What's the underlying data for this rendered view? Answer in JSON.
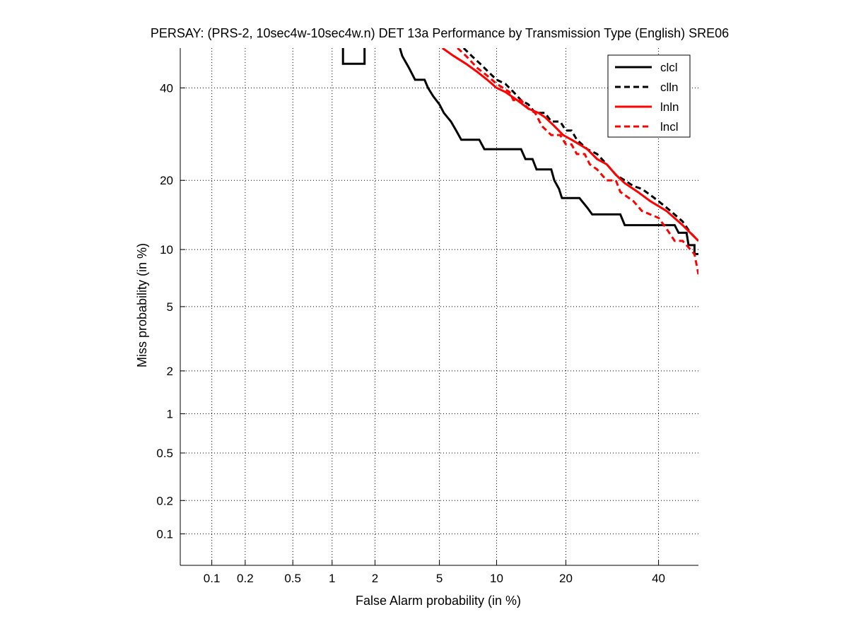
{
  "chart_data": {
    "type": "line",
    "title": "PERSAY: (PRS-2, 10sec4w-10sec4w.n) DET 13a Performance by Transmission Type (English) SRE06",
    "xlabel": "False Alarm probability (in %)",
    "ylabel": "Miss probability (in %)",
    "x_scale": "normal-deviate",
    "y_scale": "normal-deviate",
    "xlim": [
      0.05,
      50
    ],
    "ylim": [
      0.05,
      50
    ],
    "x_ticks": [
      "0.1",
      "0.2",
      "0.5",
      "1",
      "2",
      "5",
      "10",
      "20",
      "40"
    ],
    "y_ticks": [
      "0.1",
      "0.2",
      "0.5",
      "1",
      "2",
      "5",
      "10",
      "20",
      "40"
    ],
    "grid": true,
    "legend_position": "top-right",
    "series": [
      {
        "name": "clcl",
        "color": "#000000",
        "style": "solid",
        "segments": [
          [
            [
              1.2,
              50
            ],
            [
              1.2,
              46
            ],
            [
              1.7,
              46
            ],
            [
              1.7,
              50
            ]
          ],
          [
            [
              2.9,
              50
            ],
            [
              3.0,
              48
            ],
            [
              3.3,
              45
            ],
            [
              3.6,
              42
            ],
            [
              4.1,
              42
            ],
            [
              4.3,
              40
            ],
            [
              4.6,
              38
            ],
            [
              5.0,
              36
            ],
            [
              5.3,
              34
            ],
            [
              5.8,
              32
            ],
            [
              6.2,
              30
            ],
            [
              6.6,
              28
            ],
            [
              7.3,
              28
            ],
            [
              8.2,
              28
            ],
            [
              8.7,
              26
            ],
            [
              10.0,
              26
            ],
            [
              11.5,
              26
            ],
            [
              13.0,
              26
            ],
            [
              13.6,
              24
            ],
            [
              14.6,
              24
            ],
            [
              15.2,
              22
            ],
            [
              17.5,
              22
            ],
            [
              18.0,
              20
            ],
            [
              18.8,
              18.5
            ],
            [
              19.3,
              17
            ],
            [
              22.5,
              17
            ],
            [
              24.0,
              15.5
            ],
            [
              25.0,
              14.5
            ],
            [
              31.0,
              14.5
            ],
            [
              32.0,
              13.0
            ],
            [
              44.0,
              13.0
            ],
            [
              45.0,
              12.0
            ],
            [
              47.0,
              12.0
            ],
            [
              47.5,
              10.5
            ],
            [
              49.0,
              10.5
            ],
            [
              49.0,
              9.5
            ],
            [
              50.0,
              9.5
            ]
          ]
        ]
      },
      {
        "name": "clln",
        "color": "#000000",
        "style": "dashed",
        "segments": [
          [
            [
              6.8,
              50
            ],
            [
              7.5,
              48
            ],
            [
              8.3,
              46
            ],
            [
              9.1,
              44
            ],
            [
              10.0,
              42
            ],
            [
              11.0,
              41
            ],
            [
              12.0,
              39
            ],
            [
              13.0,
              37
            ],
            [
              14.0,
              36
            ],
            [
              15.0,
              34
            ],
            [
              16.5,
              34
            ],
            [
              17.5,
              32
            ],
            [
              19.0,
              32
            ],
            [
              20.0,
              30
            ],
            [
              21.0,
              30
            ],
            [
              22.0,
              28
            ],
            [
              24.0,
              26
            ],
            [
              26.0,
              25
            ],
            [
              28.0,
              23
            ],
            [
              30.0,
              21
            ],
            [
              32.0,
              20
            ],
            [
              34.0,
              19
            ],
            [
              36.0,
              18.5
            ],
            [
              38.0,
              17.5
            ],
            [
              40.0,
              16.5
            ],
            [
              43.0,
              15
            ],
            [
              46.0,
              13.5
            ],
            [
              48.0,
              12
            ],
            [
              50.0,
              11
            ]
          ]
        ]
      },
      {
        "name": "lnln",
        "color": "#ff0000",
        "style": "solid",
        "segments": [
          [
            [
              5.2,
              50
            ],
            [
              6.0,
              48
            ],
            [
              7.0,
              46
            ],
            [
              8.0,
              44
            ],
            [
              9.0,
              42
            ],
            [
              10.0,
              40
            ],
            [
              11.0,
              39
            ],
            [
              12.5,
              37
            ],
            [
              14.0,
              35
            ],
            [
              15.5,
              34
            ],
            [
              16.5,
              33
            ],
            [
              18.0,
              31
            ],
            [
              19.5,
              29
            ],
            [
              21.0,
              28
            ],
            [
              22.5,
              27
            ],
            [
              24.0,
              26
            ],
            [
              26.0,
              24
            ],
            [
              28.0,
              23
            ],
            [
              30.0,
              21
            ],
            [
              32.0,
              19.5
            ],
            [
              35.0,
              18
            ],
            [
              38.0,
              16.5
            ],
            [
              42.0,
              15
            ],
            [
              46.0,
              13
            ],
            [
              50.0,
              11
            ]
          ]
        ]
      },
      {
        "name": "lncl",
        "color": "#ff0000",
        "style": "dashed",
        "segments": [
          [
            [
              6.3,
              50
            ],
            [
              7.0,
              48
            ],
            [
              8.0,
              45
            ],
            [
              9.0,
              43
            ],
            [
              10.0,
              41
            ],
            [
              11.5,
              39
            ],
            [
              12.0,
              37
            ],
            [
              13.0,
              37
            ],
            [
              14.0,
              35
            ],
            [
              15.0,
              34
            ],
            [
              16.0,
              31
            ],
            [
              17.5,
              29
            ],
            [
              19.0,
              29
            ],
            [
              20.0,
              27
            ],
            [
              21.0,
              27
            ],
            [
              22.0,
              25
            ],
            [
              23.5,
              25
            ],
            [
              24.5,
              23
            ],
            [
              26.0,
              22
            ],
            [
              28.0,
              20
            ],
            [
              30.0,
              20
            ],
            [
              31.0,
              18
            ],
            [
              34.0,
              16.5
            ],
            [
              36.0,
              15
            ],
            [
              40.0,
              14
            ],
            [
              42.0,
              12.5
            ],
            [
              44.0,
              11
            ],
            [
              46.0,
              11
            ],
            [
              47.0,
              10.5
            ],
            [
              49.0,
              9.5
            ],
            [
              50.0,
              7.5
            ]
          ]
        ]
      }
    ]
  }
}
